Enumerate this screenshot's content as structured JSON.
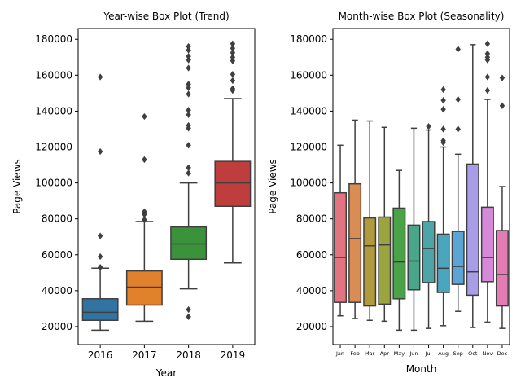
{
  "chart_data": [
    {
      "type": "box",
      "title": "Year-wise Box Plot (Trend)",
      "xlabel": "Year",
      "ylabel": "Page Views",
      "ylim": [
        10000,
        186000
      ],
      "yticks": [
        20000,
        40000,
        60000,
        80000,
        100000,
        120000,
        140000,
        160000,
        180000
      ],
      "categories": [
        "2016",
        "2017",
        "2018",
        "2019"
      ],
      "colors": [
        "#3274a1",
        "#e1812c",
        "#3a923a",
        "#c03d3e"
      ],
      "boxes": [
        {
          "q1": 23500,
          "median": 28000,
          "q3": 35500,
          "whisker_low": 18000,
          "whisker_high": 52500,
          "outliers": [
            53000,
            59000,
            70500,
            117500,
            159000
          ]
        },
        {
          "q1": 32000,
          "median": 42000,
          "q3": 51000,
          "whisker_low": 23000,
          "whisker_high": 78500,
          "outliers": [
            79500,
            82500,
            84000,
            113000,
            137000
          ]
        },
        {
          "q1": 57500,
          "median": 66000,
          "q3": 75500,
          "whisker_low": 41000,
          "whisker_high": 100000,
          "outliers": [
            25500,
            29500,
            105500,
            108500,
            121000,
            130500,
            132000,
            138000,
            140500,
            149500,
            153000,
            155000,
            164000,
            168500,
            170500,
            174000,
            176000
          ]
        },
        {
          "q1": 87000,
          "median": 100000,
          "q3": 112000,
          "whisker_low": 55500,
          "whisker_high": 147000,
          "outliers": [
            151500,
            152500,
            157000,
            160500,
            168000,
            170000,
            172500,
            175000,
            177500
          ]
        }
      ]
    },
    {
      "type": "box",
      "title": "Month-wise Box Plot (Seasonality)",
      "xlabel": "Month",
      "ylabel": "Page Views",
      "ylim": [
        10000,
        186000
      ],
      "yticks": [
        20000,
        40000,
        60000,
        80000,
        100000,
        120000,
        140000,
        160000,
        180000
      ],
      "categories": [
        "Jan",
        "Feb",
        "Mar",
        "Apr",
        "May",
        "Jun",
        "Jul",
        "Aug",
        "Sep",
        "Oct",
        "Nov",
        "Dec"
      ],
      "colors": [
        "#e1747e",
        "#da8c55",
        "#b19a3c",
        "#9ba43d",
        "#4aa447",
        "#4aa68a",
        "#4da5a8",
        "#4ba5bd",
        "#5aa4d6",
        "#a99de7",
        "#d689d8",
        "#e37bb4"
      ],
      "boxes": [
        {
          "q1": 33500,
          "median": 58500,
          "q3": 94500,
          "whisker_low": 26000,
          "whisker_high": 121000,
          "outliers": []
        },
        {
          "q1": 33500,
          "median": 69000,
          "q3": 99500,
          "whisker_low": 24500,
          "whisker_high": 135000,
          "outliers": []
        },
        {
          "q1": 31500,
          "median": 65000,
          "q3": 80500,
          "whisker_low": 23500,
          "whisker_high": 134500,
          "outliers": []
        },
        {
          "q1": 32500,
          "median": 65500,
          "q3": 81000,
          "whisker_low": 23000,
          "whisker_high": 131000,
          "outliers": []
        },
        {
          "q1": 35500,
          "median": 56000,
          "q3": 86000,
          "whisker_low": 18000,
          "whisker_high": 107000,
          "outliers": []
        },
        {
          "q1": 40500,
          "median": 56500,
          "q3": 76500,
          "whisker_low": 18000,
          "whisker_high": 130500,
          "outliers": []
        },
        {
          "q1": 44500,
          "median": 63500,
          "q3": 78500,
          "whisker_low": 19000,
          "whisker_high": 129500,
          "outliers": [
            131500
          ]
        },
        {
          "q1": 39000,
          "median": 52500,
          "q3": 71500,
          "whisker_low": 20500,
          "whisker_high": 120000,
          "outliers": [
            122500,
            123500,
            130000,
            141000,
            146000,
            152000
          ]
        },
        {
          "q1": 43500,
          "median": 53500,
          "q3": 73000,
          "whisker_low": 28500,
          "whisker_high": 116000,
          "outliers": [
            130000,
            146500,
            174500
          ]
        },
        {
          "q1": 37500,
          "median": 50500,
          "q3": 110500,
          "whisker_low": 19500,
          "whisker_high": 177000,
          "outliers": []
        },
        {
          "q1": 45000,
          "median": 58500,
          "q3": 86500,
          "whisker_low": 22500,
          "whisker_high": 146500,
          "outliers": [
            151500,
            159000,
            168500,
            170000,
            172000,
            177500
          ]
        },
        {
          "q1": 31500,
          "median": 49000,
          "q3": 73500,
          "whisker_low": 19000,
          "whisker_high": 98000,
          "outliers": [
            143000,
            158500
          ]
        }
      ]
    }
  ]
}
